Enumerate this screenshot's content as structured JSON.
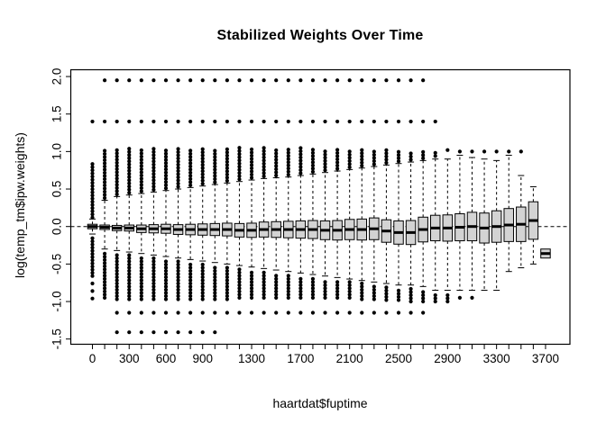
{
  "chart_data": {
    "type": "boxplot",
    "title": "Stabilized Weights Over Time",
    "xlabel": "haartdat$fuptime",
    "ylabel": "log(temp_tm$ipw.weights)",
    "colors": {
      "box_fill": "#d3d3d3",
      "stroke": "#000000",
      "background": "#ffffff"
    },
    "ylim": [
      -1.55,
      2.05
    ],
    "grid": "off",
    "reference_line": {
      "y": 0.0,
      "style": "dashed"
    },
    "y_ticks": [
      {
        "v": 2.0,
        "label": "2.0"
      },
      {
        "v": 1.5,
        "label": "1.5"
      },
      {
        "v": 1.0,
        "label": "1.0"
      },
      {
        "v": 0.5,
        "label": "0.5"
      },
      {
        "v": 0.0,
        "label": "0.0"
      },
      {
        "v": -0.5,
        "label": "-0.5"
      },
      {
        "v": -1.0,
        "label": "-1.0"
      },
      {
        "v": -1.5,
        "label": "-1.5"
      }
    ],
    "x_tick_labels": [
      {
        "i": 0,
        "label": "0"
      },
      {
        "i": 3,
        "label": "300"
      },
      {
        "i": 6,
        "label": "600"
      },
      {
        "i": 9,
        "label": "900"
      },
      {
        "i": 13,
        "label": "1300"
      },
      {
        "i": 17,
        "label": "1700"
      },
      {
        "i": 21,
        "label": "2100"
      },
      {
        "i": 25,
        "label": "2500"
      },
      {
        "i": 29,
        "label": "2900"
      },
      {
        "i": 33,
        "label": "3300"
      },
      {
        "i": 37,
        "label": "3700"
      }
    ],
    "boxes": [
      {
        "x": 0,
        "q1": -0.03,
        "med": 0.0,
        "q3": 0.03,
        "wlo": -0.1,
        "whi": 0.1,
        "out_ranges": [
          [
            -0.66,
            -0.12
          ],
          [
            0.12,
            0.86
          ]
        ],
        "out_pts": [
          1.4,
          -0.76,
          -0.86,
          -0.96
        ]
      },
      {
        "x": 100,
        "q1": -0.04,
        "med": -0.01,
        "q3": 0.02,
        "wlo": -0.3,
        "whi": 0.35,
        "out_ranges": [
          [
            -0.95,
            -0.34
          ],
          [
            0.38,
            1.05
          ]
        ],
        "out_pts": [
          1.4,
          1.95
        ]
      },
      {
        "x": 200,
        "q1": -0.055,
        "med": -0.02,
        "q3": 0.015,
        "wlo": -0.32,
        "whi": 0.4,
        "out_ranges": [
          [
            -0.97,
            -0.36
          ],
          [
            0.43,
            1.05
          ]
        ],
        "out_pts": [
          1.4,
          1.95,
          -1.15,
          -1.41
        ]
      },
      {
        "x": 300,
        "q1": -0.06,
        "med": -0.02,
        "q3": 0.02,
        "wlo": -0.34,
        "whi": 0.42,
        "out_ranges": [
          [
            -0.97,
            -0.38
          ],
          [
            0.45,
            1.05
          ]
        ],
        "out_pts": [
          1.4,
          1.95,
          -1.15,
          -1.41
        ]
      },
      {
        "x": 400,
        "q1": -0.08,
        "med": -0.03,
        "q3": 0.02,
        "wlo": -0.36,
        "whi": 0.44,
        "out_ranges": [
          [
            -0.97,
            -0.4
          ],
          [
            0.47,
            1.05
          ]
        ],
        "out_pts": [
          1.4,
          1.95,
          -1.15,
          -1.41
        ]
      },
      {
        "x": 500,
        "q1": -0.085,
        "med": -0.03,
        "q3": 0.025,
        "wlo": -0.38,
        "whi": 0.46,
        "out_ranges": [
          [
            -0.97,
            -0.42
          ],
          [
            0.49,
            1.05
          ]
        ],
        "out_pts": [
          1.4,
          1.95,
          -1.15,
          -1.41
        ]
      },
      {
        "x": 600,
        "q1": -0.09,
        "med": -0.03,
        "q3": 0.03,
        "wlo": -0.4,
        "whi": 0.48,
        "out_ranges": [
          [
            -0.97,
            -0.44
          ],
          [
            0.51,
            1.05
          ]
        ],
        "out_pts": [
          1.4,
          1.95,
          -1.15,
          -1.41
        ]
      },
      {
        "x": 700,
        "q1": -0.105,
        "med": -0.04,
        "q3": 0.025,
        "wlo": -0.42,
        "whi": 0.5,
        "out_ranges": [
          [
            -0.97,
            -0.46
          ],
          [
            0.53,
            1.05
          ]
        ],
        "out_pts": [
          1.4,
          1.95,
          -1.15,
          -1.41
        ]
      },
      {
        "x": 800,
        "q1": -0.11,
        "med": -0.04,
        "q3": 0.03,
        "wlo": -0.44,
        "whi": 0.52,
        "out_ranges": [
          [
            -0.97,
            -0.48
          ],
          [
            0.55,
            1.05
          ]
        ],
        "out_pts": [
          1.4,
          1.95,
          -1.15,
          -1.41
        ]
      },
      {
        "x": 900,
        "q1": -0.115,
        "med": -0.04,
        "q3": 0.035,
        "wlo": -0.46,
        "whi": 0.54,
        "out_ranges": [
          [
            -0.97,
            -0.5
          ],
          [
            0.57,
            1.05
          ]
        ],
        "out_pts": [
          1.4,
          1.95,
          -1.15,
          -1.41
        ]
      },
      {
        "x": 1000,
        "q1": -0.12,
        "med": -0.04,
        "q3": 0.04,
        "wlo": -0.48,
        "whi": 0.56,
        "out_ranges": [
          [
            -0.97,
            -0.52
          ],
          [
            0.59,
            1.05
          ]
        ],
        "out_pts": [
          1.4,
          1.95,
          -1.15,
          -1.41
        ]
      },
      {
        "x": 1100,
        "q1": -0.125,
        "med": -0.04,
        "q3": 0.045,
        "wlo": -0.5,
        "whi": 0.58,
        "out_ranges": [
          [
            -0.97,
            -0.54
          ],
          [
            0.61,
            1.05
          ]
        ],
        "out_pts": [
          1.4,
          1.95,
          -1.15
        ]
      },
      {
        "x": 1200,
        "q1": -0.14,
        "med": -0.05,
        "q3": 0.04,
        "wlo": -0.52,
        "whi": 0.6,
        "out_ranges": [
          [
            -0.95,
            -0.56
          ],
          [
            0.63,
            1.05
          ]
        ],
        "out_pts": [
          1.4,
          1.95,
          -1.15
        ]
      },
      {
        "x": 1300,
        "q1": -0.145,
        "med": -0.05,
        "q3": 0.045,
        "wlo": -0.54,
        "whi": 0.62,
        "out_ranges": [
          [
            -0.95,
            -0.58
          ],
          [
            0.65,
            1.05
          ]
        ],
        "out_pts": [
          1.4,
          1.95,
          -1.15
        ]
      },
      {
        "x": 1400,
        "q1": -0.14,
        "med": -0.04,
        "q3": 0.06,
        "wlo": -0.56,
        "whi": 0.64,
        "out_ranges": [
          [
            -0.95,
            -0.6
          ],
          [
            0.67,
            1.05
          ]
        ],
        "out_pts": [
          1.4,
          1.95,
          -1.15
        ]
      },
      {
        "x": 1500,
        "q1": -0.145,
        "med": -0.04,
        "q3": 0.065,
        "wlo": -0.58,
        "whi": 0.65,
        "out_ranges": [
          [
            -0.95,
            -0.62
          ],
          [
            0.68,
            1.05
          ]
        ],
        "out_pts": [
          1.4,
          1.95,
          -1.15
        ]
      },
      {
        "x": 1600,
        "q1": -0.15,
        "med": -0.04,
        "q3": 0.07,
        "wlo": -0.6,
        "whi": 0.66,
        "out_ranges": [
          [
            -0.95,
            -0.64
          ],
          [
            0.69,
            1.05
          ]
        ],
        "out_pts": [
          1.4,
          1.95,
          -1.15
        ]
      },
      {
        "x": 1700,
        "q1": -0.155,
        "med": -0.04,
        "q3": 0.075,
        "wlo": -0.62,
        "whi": 0.68,
        "out_ranges": [
          [
            -0.95,
            -0.66
          ],
          [
            0.71,
            1.05
          ]
        ],
        "out_pts": [
          1.4,
          1.95,
          -1.15
        ]
      },
      {
        "x": 1800,
        "q1": -0.16,
        "med": -0.04,
        "q3": 0.08,
        "wlo": -0.64,
        "whi": 0.7,
        "out_ranges": [
          [
            -0.95,
            -0.68
          ],
          [
            0.73,
            1.04
          ]
        ],
        "out_pts": [
          1.4,
          1.95,
          -1.15
        ]
      },
      {
        "x": 1900,
        "q1": -0.175,
        "med": -0.05,
        "q3": 0.075,
        "wlo": -0.66,
        "whi": 0.72,
        "out_ranges": [
          [
            -0.95,
            -0.7
          ],
          [
            0.75,
            1.04
          ]
        ],
        "out_pts": [
          1.4,
          1.95,
          -1.15
        ]
      },
      {
        "x": 2000,
        "q1": -0.18,
        "med": -0.05,
        "q3": 0.08,
        "wlo": -0.68,
        "whi": 0.74,
        "out_ranges": [
          [
            -0.95,
            -0.72
          ],
          [
            0.77,
            1.03
          ]
        ],
        "out_pts": [
          1.4,
          1.95,
          -1.15
        ]
      },
      {
        "x": 2100,
        "q1": -0.175,
        "med": -0.04,
        "q3": 0.095,
        "wlo": -0.7,
        "whi": 0.76,
        "out_ranges": [
          [
            -0.95,
            -0.74
          ],
          [
            0.79,
            1.03
          ]
        ],
        "out_pts": [
          1.4,
          1.95,
          -1.15
        ]
      },
      {
        "x": 2200,
        "q1": -0.18,
        "med": -0.04,
        "q3": 0.1,
        "wlo": -0.72,
        "whi": 0.78,
        "out_ranges": [
          [
            -0.97,
            -0.76
          ],
          [
            0.81,
            1.02
          ]
        ],
        "out_pts": [
          1.4,
          1.95,
          -1.15
        ]
      },
      {
        "x": 2300,
        "q1": -0.175,
        "med": -0.03,
        "q3": 0.115,
        "wlo": -0.74,
        "whi": 0.8,
        "out_ranges": [
          [
            -0.97,
            -0.78
          ],
          [
            0.83,
            1.02
          ]
        ],
        "out_pts": [
          1.4,
          1.95,
          -1.15
        ]
      },
      {
        "x": 2400,
        "q1": -0.21,
        "med": -0.06,
        "q3": 0.09,
        "wlo": -0.76,
        "whi": 0.82,
        "out_ranges": [
          [
            -0.98,
            -0.8
          ],
          [
            0.85,
            1.02
          ]
        ],
        "out_pts": [
          1.4,
          1.95,
          -1.15
        ]
      },
      {
        "x": 2500,
        "q1": -0.235,
        "med": -0.08,
        "q3": 0.075,
        "wlo": -0.78,
        "whi": 0.84,
        "out_ranges": [
          [
            -0.98,
            -0.82
          ],
          [
            0.87,
            1.0
          ]
        ],
        "out_pts": [
          1.4,
          1.95,
          -1.15
        ]
      },
      {
        "x": 2600,
        "q1": -0.24,
        "med": -0.08,
        "q3": 0.08,
        "wlo": -0.78,
        "whi": 0.86,
        "out_ranges": [
          [
            -1.0,
            -0.82
          ],
          [
            0.89,
            1.0
          ]
        ],
        "out_pts": [
          1.4,
          1.95,
          -1.15
        ]
      },
      {
        "x": 2700,
        "q1": -0.205,
        "med": -0.04,
        "q3": 0.125,
        "wlo": -0.8,
        "whi": 0.88,
        "out_ranges": [
          [
            -1.0,
            -0.84
          ],
          [
            0.91,
            1.0
          ]
        ],
        "out_pts": [
          1.4,
          1.95,
          -1.15
        ]
      },
      {
        "x": 2800,
        "q1": -0.19,
        "med": -0.02,
        "q3": 0.15,
        "wlo": -0.85,
        "whi": 0.9,
        "out_ranges": [
          [
            -1.0,
            -0.89
          ],
          [
            0.94,
            1.0
          ]
        ],
        "out_pts": [
          1.4
        ]
      },
      {
        "x": 2900,
        "q1": -0.195,
        "med": -0.02,
        "q3": 0.155,
        "wlo": -0.85,
        "whi": 0.9,
        "out_ranges": [
          [
            -1.0,
            -0.9
          ]
        ],
        "out_pts": [
          1.02
        ]
      },
      {
        "x": 3000,
        "q1": -0.19,
        "med": -0.01,
        "q3": 0.17,
        "wlo": -0.85,
        "whi": 0.95,
        "out_ranges": [],
        "out_pts": [
          1.0,
          -0.95
        ]
      },
      {
        "x": 3100,
        "q1": -0.19,
        "med": 0.0,
        "q3": 0.19,
        "wlo": -0.85,
        "whi": 0.92,
        "out_ranges": [],
        "out_pts": [
          1.0,
          -0.95
        ]
      },
      {
        "x": 3200,
        "q1": -0.22,
        "med": -0.02,
        "q3": 0.18,
        "wlo": -0.85,
        "whi": 0.9,
        "out_ranges": [],
        "out_pts": [
          1.0
        ]
      },
      {
        "x": 3300,
        "q1": -0.21,
        "med": 0.0,
        "q3": 0.21,
        "wlo": -0.85,
        "whi": 0.88,
        "out_ranges": [],
        "out_pts": [
          1.0
        ]
      },
      {
        "x": 3400,
        "q1": -0.2,
        "med": 0.02,
        "q3": 0.24,
        "wlo": -0.6,
        "whi": 0.95,
        "out_ranges": [],
        "out_pts": [
          1.0
        ]
      },
      {
        "x": 3500,
        "q1": -0.2,
        "med": 0.03,
        "q3": 0.26,
        "wlo": -0.55,
        "whi": 0.68,
        "out_ranges": [],
        "out_pts": [
          1.0
        ]
      },
      {
        "x": 3600,
        "q1": -0.17,
        "med": 0.08,
        "q3": 0.33,
        "wlo": -0.5,
        "whi": 0.53,
        "out_ranges": [],
        "out_pts": []
      },
      {
        "x": 3700,
        "q1": -0.42,
        "med": -0.36,
        "q3": -0.3,
        "wlo": -0.42,
        "whi": -0.3,
        "out_ranges": [],
        "out_pts": []
      }
    ]
  }
}
